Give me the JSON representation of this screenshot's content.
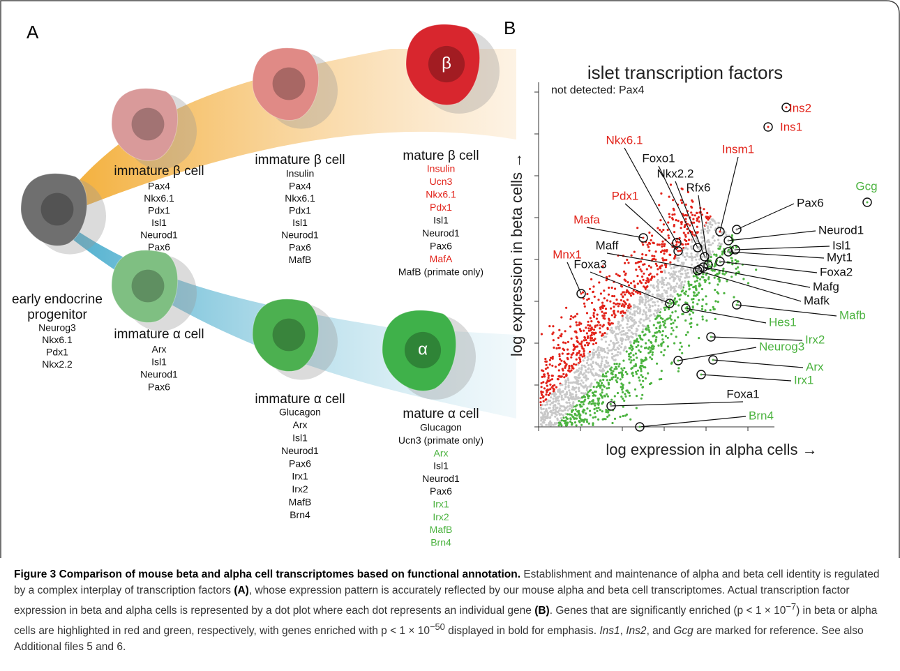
{
  "panel_a": {
    "label": "A",
    "stages": [
      {
        "title": [
          "early endocrine",
          "progenitor"
        ],
        "genes": [
          {
            "name": "Neurog3"
          },
          {
            "name": "Nkx6.1"
          },
          {
            "name": "Pdx1"
          },
          {
            "name": "Nkx2.2"
          }
        ]
      },
      {
        "title": [
          "immature β cell"
        ],
        "genes": [
          {
            "name": "Pax4"
          },
          {
            "name": "Nkx6.1"
          },
          {
            "name": "Pdx1"
          },
          {
            "name": "Isl1"
          },
          {
            "name": "Neurod1"
          },
          {
            "name": "Pax6"
          }
        ]
      },
      {
        "title": [
          "immature α cell"
        ],
        "genes": [
          {
            "name": "Arx"
          },
          {
            "name": "Isl1"
          },
          {
            "name": "Neurod1"
          },
          {
            "name": "Pax6"
          }
        ]
      },
      {
        "title": [
          "immature β cell"
        ],
        "genes": [
          {
            "name": "Insulin"
          },
          {
            "name": "Pax4"
          },
          {
            "name": "Nkx6.1"
          },
          {
            "name": "Pdx1"
          },
          {
            "name": "Isl1"
          },
          {
            "name": "Neurod1"
          },
          {
            "name": "Pax6"
          },
          {
            "name": "MafB"
          }
        ]
      },
      {
        "title": [
          "immature α cell"
        ],
        "genes": [
          {
            "name": "Glucagon"
          },
          {
            "name": "Arx"
          },
          {
            "name": "Isl1"
          },
          {
            "name": "Neurod1"
          },
          {
            "name": "Pax6"
          },
          {
            "name": "Irx1"
          },
          {
            "name": "Irx2"
          },
          {
            "name": "MafB"
          },
          {
            "name": "Brn4"
          }
        ]
      },
      {
        "title": [
          "mature β cell"
        ],
        "symbol": "β",
        "genes": [
          {
            "name": "Insulin",
            "color": "#e2231a"
          },
          {
            "name": "Ucn3",
            "color": "#e2231a"
          },
          {
            "name": "Nkx6.1",
            "color": "#e2231a"
          },
          {
            "name": "Pdx1",
            "color": "#e2231a"
          },
          {
            "name": "Isl1"
          },
          {
            "name": "Neurod1"
          },
          {
            "name": "Pax6"
          },
          {
            "name": "MafA",
            "color": "#e2231a"
          },
          {
            "name": "MafB (primate only)"
          }
        ]
      },
      {
        "title": [
          "mature α cell"
        ],
        "symbol": "α",
        "genes": [
          {
            "name": "Glucagon"
          },
          {
            "name": "Ucn3 (primate only)"
          },
          {
            "name": "Arx",
            "color": "#4cb340"
          },
          {
            "name": "Isl1"
          },
          {
            "name": "Neurod1"
          },
          {
            "name": "Pax6"
          },
          {
            "name": "Irx1",
            "color": "#4cb340"
          },
          {
            "name": "Irx2",
            "color": "#4cb340"
          },
          {
            "name": "MafB",
            "color": "#4cb340"
          },
          {
            "name": "Brn4",
            "color": "#4cb340"
          }
        ]
      }
    ]
  },
  "panel_b": {
    "label": "B",
    "title": "islet transcription factors",
    "x_label": "log expression in alpha cells →",
    "y_label": "log expression in beta cells →",
    "annotation": "not detected: Pax4",
    "genes": [
      {
        "name": "Ins2",
        "color": "#e2231a"
      },
      {
        "name": "Ins1",
        "color": "#e2231a"
      },
      {
        "name": "Gcg",
        "color": "#4cb340"
      },
      {
        "name": "Nkx6.1",
        "color": "#e2231a"
      },
      {
        "name": "Foxo1"
      },
      {
        "name": "Nkx2.2"
      },
      {
        "name": "Rfx6"
      },
      {
        "name": "Insm1",
        "color": "#e2231a"
      },
      {
        "name": "Pdx1",
        "color": "#e2231a"
      },
      {
        "name": "Pax6"
      },
      {
        "name": "Mafa",
        "color": "#e2231a"
      },
      {
        "name": "Neurod1"
      },
      {
        "name": "Isl1"
      },
      {
        "name": "Myt1"
      },
      {
        "name": "Foxa2"
      },
      {
        "name": "Mafg"
      },
      {
        "name": "Mafk"
      },
      {
        "name": "Maff"
      },
      {
        "name": "Foxa3"
      },
      {
        "name": "Mnx1",
        "color": "#e2231a"
      },
      {
        "name": "Hes1",
        "color": "#4cb340"
      },
      {
        "name": "Mafb",
        "color": "#4cb340"
      },
      {
        "name": "Irx2",
        "color": "#4cb340"
      },
      {
        "name": "Neurog3",
        "color": "#4cb340"
      },
      {
        "name": "Arx",
        "color": "#4cb340"
      },
      {
        "name": "Irx1",
        "color": "#4cb340"
      },
      {
        "name": "Foxa1"
      },
      {
        "name": "Brn4",
        "color": "#4cb340"
      }
    ]
  },
  "caption": {
    "heading": "Figure 3 Comparison of mouse beta and alpha cell transcriptomes based on functional annotation.",
    "t1": " Establishment and maintenance of alpha and beta cell identity is regulated by a complex interplay of transcription factors ",
    "ref_a": "(A)",
    "t2": ", whose expression pattern is accurately reflected by our mouse alpha and beta cell transcriptomes. Actual transcription factor expression in beta and alpha cells is represented by a dot plot where each dot represents an individual gene ",
    "ref_b": "(B)",
    "t3": ". Genes that are significantly enriched (p < 1 × 10",
    "sup1": "−7",
    "t4": ") in beta or alpha cells are highlighted in red and green, respectively, with genes enriched with p < 1 × 10",
    "sup2": "−50",
    "t5": " displayed in bold for emphasis. ",
    "i1": "Ins1",
    "t6": ", ",
    "i2": "Ins2",
    "t7": ", and ",
    "i3": "Gcg",
    "t8": " are marked for reference. See also Additional files 5 and 6."
  }
}
